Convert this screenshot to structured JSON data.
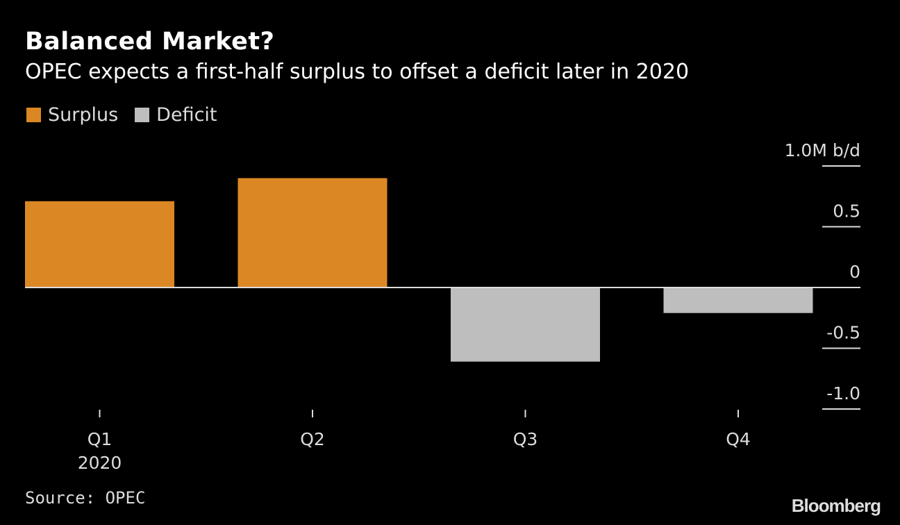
{
  "header": {
    "title": "Balanced Market?",
    "subtitle": "OPEC expects a first-half surplus to offset a deficit later in 2020"
  },
  "legend": [
    {
      "label": "Surplus",
      "color": "#db8824"
    },
    {
      "label": "Deficit",
      "color": "#bebebe"
    }
  ],
  "footer": {
    "source": "Source: OPEC",
    "brand": "Bloomberg"
  },
  "chart_data": {
    "type": "bar",
    "title": "Balanced Market?",
    "subtitle": "OPEC expects a first-half surplus to offset a deficit later in 2020",
    "categories": [
      "Q1",
      "Q2",
      "Q3",
      "Q4"
    ],
    "category_sublabels": [
      "2020",
      "",
      "",
      ""
    ],
    "values": [
      0.71,
      0.9,
      -0.61,
      -0.21
    ],
    "series": [
      {
        "name": "Surplus",
        "color": "#db8824",
        "values": [
          0.71,
          0.9,
          null,
          null
        ]
      },
      {
        "name": "Deficit",
        "color": "#bebebe",
        "values": [
          null,
          null,
          -0.61,
          -0.21
        ]
      }
    ],
    "xlabel": "",
    "ylabel": "M b/d",
    "ylim": [
      -1.0,
      1.0
    ],
    "yticks": [
      1.0,
      0.5,
      0,
      -0.5,
      -1.0
    ],
    "ytick_labels": [
      "1.0M b/d",
      "0.5",
      "0",
      "-0.5",
      "-1.0"
    ],
    "y_axis_position": "right",
    "grid": false,
    "legend_position": "top-left",
    "source": "Source: OPEC"
  }
}
